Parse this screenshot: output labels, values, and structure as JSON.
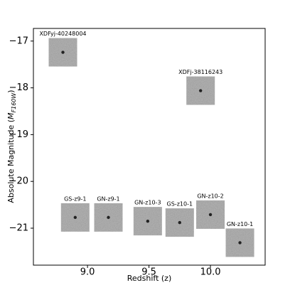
{
  "chart_data": {
    "type": "scatter",
    "xlabel": "Redshift (z)",
    "ylabel": [
      "Absolute Magnitude (",
      "M",
      "F160W",
      ")"
    ],
    "labels": [
      "XDFyj-40248004",
      "XDFj-38116243",
      "GS-z9-1",
      "GN-z9-1",
      "GN-z10-3",
      "GS-z10-1",
      "GN-z10-2",
      "GN-z10-1"
    ],
    "x": [
      8.8,
      9.92,
      8.9,
      9.17,
      9.49,
      9.75,
      10.0,
      10.24
    ],
    "values": [
      -17.24,
      -18.06,
      -20.77,
      -20.77,
      -20.85,
      -20.88,
      -20.71,
      -21.31
    ],
    "xlim": [
      8.56,
      10.445
    ],
    "ylim": [
      -21.79,
      -16.73
    ],
    "xticks": [
      {
        "value": 9,
        "label": "9.0"
      },
      9.5,
      {
        "value": 10,
        "label": "10.0"
      }
    ],
    "yticks": [
      {
        "value": -17,
        "label": "−17"
      },
      {
        "value": -18,
        "label": "−18"
      },
      {
        "value": -19,
        "label": "−19"
      },
      {
        "value": -20,
        "label": "−20"
      },
      {
        "value": -21,
        "label": "−21"
      }
    ],
    "color": "#b4b4b4"
  }
}
